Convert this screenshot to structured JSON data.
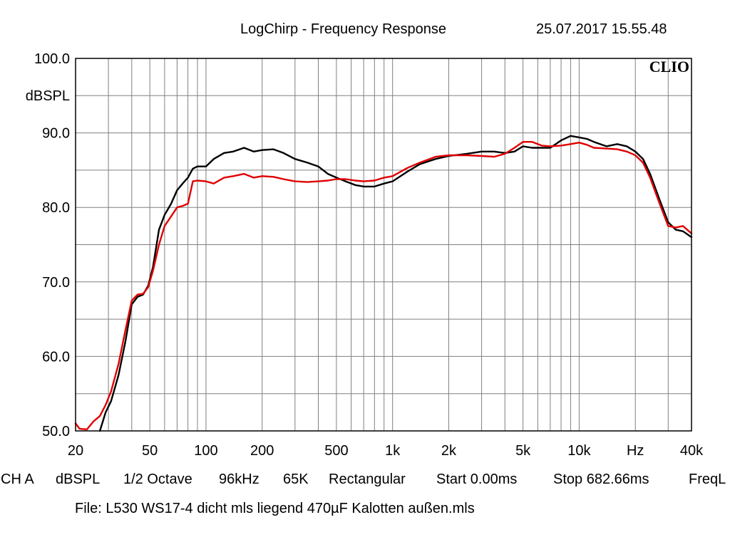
{
  "header": {
    "title": "LogChirp - Frequency Response",
    "timestamp": "25.07.2017 15.55.48"
  },
  "brand": {
    "logo_text": "CLIO"
  },
  "settings_line": {
    "channel": "CH A",
    "unit": "dBSPL",
    "smoothing": "1/2 Octave",
    "sample_rate": "96kHz",
    "points": "65K",
    "window": "Rectangular",
    "start": "Start 0.00ms",
    "stop": "Stop 682.66ms",
    "mode": "FreqL"
  },
  "footer": {
    "file": "File: L530 WS17-4 dicht mls liegend 470µF Kalotten außen.mls"
  },
  "colors": {
    "series_black": "#000000",
    "series_red": "#e00000",
    "grid": "#808080",
    "frame": "#000000"
  },
  "chart_data": {
    "type": "line",
    "title": "LogChirp - Frequency Response",
    "ylabel": "dBSPL",
    "xlabel": "Hz",
    "x_scale": "log",
    "xlim": [
      20,
      40000
    ],
    "ylim": [
      50,
      100
    ],
    "grid": true,
    "y_ticks": [
      "50.0",
      "60.0",
      "70.0",
      "80.0",
      "90.0",
      "100.0"
    ],
    "x_tick_labels": [
      {
        "value": 20,
        "label": "20"
      },
      {
        "value": 50,
        "label": "50"
      },
      {
        "value": 100,
        "label": "100"
      },
      {
        "value": 200,
        "label": "200"
      },
      {
        "value": 500,
        "label": "500"
      },
      {
        "value": 1000,
        "label": "1k"
      },
      {
        "value": 2000,
        "label": "2k"
      },
      {
        "value": 5000,
        "label": "5k"
      },
      {
        "value": 10000,
        "label": "10k"
      },
      {
        "value": 20000,
        "label": "Hz"
      },
      {
        "value": 40000,
        "label": "40k"
      }
    ],
    "series": [
      {
        "color": "#000000",
        "points": [
          [
            27,
            50
          ],
          [
            29,
            52.5
          ],
          [
            31,
            54
          ],
          [
            34,
            57.5
          ],
          [
            37,
            62
          ],
          [
            40,
            67
          ],
          [
            43,
            68
          ],
          [
            46,
            68.3
          ],
          [
            49,
            69.5
          ],
          [
            52,
            72
          ],
          [
            56,
            77
          ],
          [
            60,
            79
          ],
          [
            65,
            80.5
          ],
          [
            70,
            82.3
          ],
          [
            75,
            83.2
          ],
          [
            80,
            84
          ],
          [
            85,
            85.2
          ],
          [
            90,
            85.5
          ],
          [
            100,
            85.5
          ],
          [
            110,
            86.5
          ],
          [
            125,
            87.3
          ],
          [
            140,
            87.5
          ],
          [
            160,
            88
          ],
          [
            180,
            87.5
          ],
          [
            200,
            87.7
          ],
          [
            230,
            87.8
          ],
          [
            260,
            87.3
          ],
          [
            300,
            86.5
          ],
          [
            350,
            86
          ],
          [
            400,
            85.5
          ],
          [
            450,
            84.5
          ],
          [
            500,
            84
          ],
          [
            560,
            83.5
          ],
          [
            630,
            83
          ],
          [
            700,
            82.8
          ],
          [
            800,
            82.8
          ],
          [
            900,
            83.2
          ],
          [
            1000,
            83.5
          ],
          [
            1200,
            84.8
          ],
          [
            1400,
            85.8
          ],
          [
            1700,
            86.5
          ],
          [
            2000,
            86.9
          ],
          [
            2500,
            87.2
          ],
          [
            3000,
            87.5
          ],
          [
            3500,
            87.5
          ],
          [
            4000,
            87.3
          ],
          [
            4500,
            87.5
          ],
          [
            5000,
            88.2
          ],
          [
            5600,
            88
          ],
          [
            6300,
            88
          ],
          [
            7000,
            88
          ],
          [
            8000,
            89
          ],
          [
            9000,
            89.6
          ],
          [
            10000,
            89.4
          ],
          [
            11000,
            89.2
          ],
          [
            12000,
            88.8
          ],
          [
            14000,
            88.2
          ],
          [
            16000,
            88.5
          ],
          [
            18000,
            88.2
          ],
          [
            20000,
            87.5
          ],
          [
            22000,
            86.5
          ],
          [
            24000,
            84.5
          ],
          [
            27000,
            81
          ],
          [
            30000,
            78
          ],
          [
            33000,
            77
          ],
          [
            36000,
            76.8
          ],
          [
            40000,
            76
          ]
        ]
      },
      {
        "color": "#e00000",
        "points": [
          [
            20,
            51
          ],
          [
            21,
            50.3
          ],
          [
            23,
            50.2
          ],
          [
            25,
            51.3
          ],
          [
            27,
            52
          ],
          [
            29,
            53.5
          ],
          [
            31,
            55.3
          ],
          [
            34,
            59
          ],
          [
            37,
            63.5
          ],
          [
            40,
            67.5
          ],
          [
            43,
            68.3
          ],
          [
            46,
            68.4
          ],
          [
            49,
            69.3
          ],
          [
            52,
            71.5
          ],
          [
            56,
            75
          ],
          [
            60,
            77.5
          ],
          [
            65,
            78.8
          ],
          [
            70,
            80
          ],
          [
            75,
            80.2
          ],
          [
            80,
            80.5
          ],
          [
            85,
            83.5
          ],
          [
            90,
            83.6
          ],
          [
            100,
            83.5
          ],
          [
            110,
            83.2
          ],
          [
            125,
            84
          ],
          [
            140,
            84.2
          ],
          [
            160,
            84.5
          ],
          [
            180,
            84
          ],
          [
            200,
            84.2
          ],
          [
            230,
            84.1
          ],
          [
            260,
            83.8
          ],
          [
            300,
            83.5
          ],
          [
            350,
            83.4
          ],
          [
            400,
            83.5
          ],
          [
            450,
            83.6
          ],
          [
            500,
            83.8
          ],
          [
            560,
            83.8
          ],
          [
            630,
            83.6
          ],
          [
            700,
            83.5
          ],
          [
            800,
            83.6
          ],
          [
            900,
            84
          ],
          [
            1000,
            84.2
          ],
          [
            1200,
            85.3
          ],
          [
            1400,
            86
          ],
          [
            1700,
            86.8
          ],
          [
            2000,
            87
          ],
          [
            2500,
            87
          ],
          [
            3000,
            86.9
          ],
          [
            3500,
            86.8
          ],
          [
            4000,
            87.2
          ],
          [
            4500,
            88
          ],
          [
            5000,
            88.8
          ],
          [
            5600,
            88.8
          ],
          [
            6300,
            88.3
          ],
          [
            7000,
            88.2
          ],
          [
            8000,
            88.3
          ],
          [
            9000,
            88.5
          ],
          [
            10000,
            88.7
          ],
          [
            11000,
            88.4
          ],
          [
            12000,
            88
          ],
          [
            14000,
            87.9
          ],
          [
            16000,
            87.8
          ],
          [
            18000,
            87.5
          ],
          [
            20000,
            87
          ],
          [
            22000,
            86
          ],
          [
            24000,
            84
          ],
          [
            27000,
            80.5
          ],
          [
            30000,
            77.5
          ],
          [
            33000,
            77.3
          ],
          [
            36000,
            77.5
          ],
          [
            40000,
            76.5
          ]
        ]
      }
    ]
  }
}
